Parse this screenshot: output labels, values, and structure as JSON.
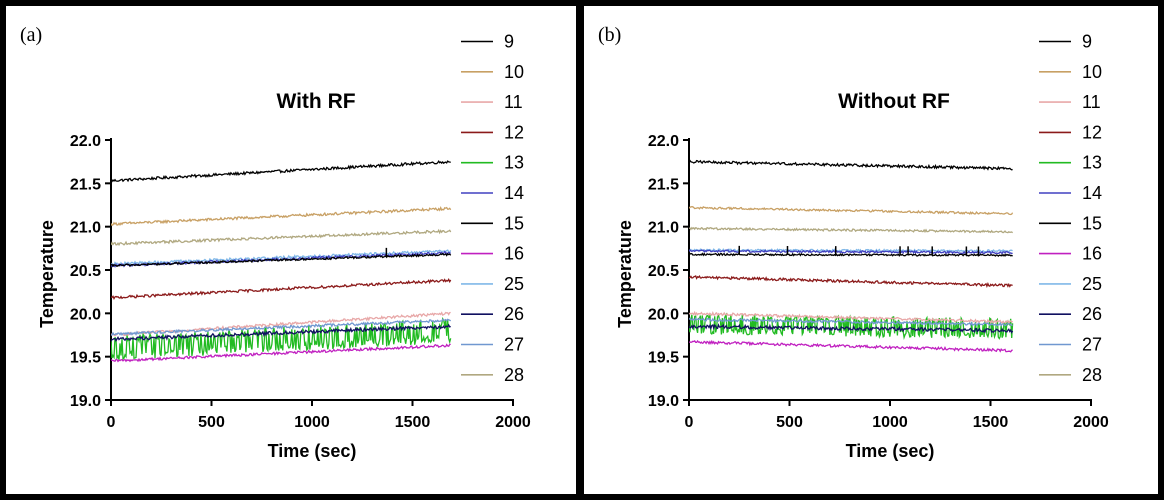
{
  "chart_data": [
    {
      "type": "line",
      "panel_label": "(a)",
      "title": "With RF",
      "xlabel": "Time (sec)",
      "ylabel": "Temperature",
      "xlim": [
        0,
        2000
      ],
      "ylim": [
        19.0,
        22.0
      ],
      "x_ticks": [
        "0",
        "500",
        "1000",
        "1500",
        "2000"
      ],
      "y_ticks": [
        "19.0",
        "19.5",
        "20.0",
        "20.5",
        "21.0",
        "21.5",
        "22.0"
      ],
      "x_tick_values": [
        0,
        500,
        1000,
        1500,
        2000
      ],
      "y_tick_values": [
        19.0,
        19.5,
        20.0,
        20.5,
        21.0,
        21.5,
        22.0
      ],
      "legend_position": "right",
      "series": [
        {
          "name": "9",
          "color": "#000000",
          "x": [
            0,
            1690
          ],
          "y": [
            21.53,
            21.75
          ],
          "noise": 0.015
        },
        {
          "name": "10",
          "color": "#c8a064",
          "x": [
            0,
            1690
          ],
          "y": [
            21.03,
            21.21
          ],
          "noise": 0.015
        },
        {
          "name": "11",
          "color": "#e8a8a8",
          "x": [
            0,
            1690
          ],
          "y": [
            19.75,
            20.0
          ],
          "noise": 0.015
        },
        {
          "name": "12",
          "color": "#8b1a1a",
          "x": [
            0,
            1690
          ],
          "y": [
            20.18,
            20.38
          ],
          "noise": 0.015
        },
        {
          "name": "13",
          "color": "#22bb22",
          "x": [
            0,
            1690
          ],
          "y": [
            19.6,
            19.8
          ],
          "noise": 0.12
        },
        {
          "name": "14",
          "color": "#4040c0",
          "x": [
            0,
            1690
          ],
          "y": [
            20.55,
            20.7
          ],
          "noise": 0.015
        },
        {
          "name": "15",
          "color": "#000000",
          "x": [
            0,
            1690
          ],
          "y": [
            20.55,
            20.68
          ],
          "noise": 0.012
        },
        {
          "name": "16",
          "color": "#c020c0",
          "x": [
            0,
            1690
          ],
          "y": [
            19.45,
            19.63
          ],
          "noise": 0.015
        },
        {
          "name": "25",
          "color": "#80b8e8",
          "x": [
            0,
            1690
          ],
          "y": [
            20.57,
            20.72
          ],
          "noise": 0.015
        },
        {
          "name": "26",
          "color": "#101060",
          "x": [
            0,
            1690
          ],
          "y": [
            19.7,
            19.85
          ],
          "noise": 0.02
        },
        {
          "name": "27",
          "color": "#7098d0",
          "x": [
            0,
            1690
          ],
          "y": [
            19.76,
            19.92
          ],
          "noise": 0.015
        },
        {
          "name": "28",
          "color": "#b0a880",
          "x": [
            0,
            1690
          ],
          "y": [
            20.8,
            20.95
          ],
          "noise": 0.015
        }
      ],
      "spikes": {
        "series": "15",
        "x": [
          1370
        ],
        "height": 0.1
      }
    },
    {
      "type": "line",
      "panel_label": "(b)",
      "title": "Without RF",
      "xlabel": "Time (sec)",
      "ylabel": "Temperature",
      "xlim": [
        0,
        2000
      ],
      "ylim": [
        19.0,
        22.0
      ],
      "x_ticks": [
        "0",
        "500",
        "1000",
        "1500",
        "2000"
      ],
      "y_ticks": [
        "19.0",
        "19.5",
        "20.0",
        "20.5",
        "21.0",
        "21.5",
        "22.0"
      ],
      "x_tick_values": [
        0,
        500,
        1000,
        1500,
        2000
      ],
      "y_tick_values": [
        19.0,
        19.5,
        20.0,
        20.5,
        21.0,
        21.5,
        22.0
      ],
      "legend_position": "right",
      "series": [
        {
          "name": "9",
          "color": "#000000",
          "x": [
            0,
            1610
          ],
          "y": [
            21.75,
            21.67
          ],
          "noise": 0.015
        },
        {
          "name": "10",
          "color": "#c8a064",
          "x": [
            0,
            1610
          ],
          "y": [
            21.22,
            21.15
          ],
          "noise": 0.012
        },
        {
          "name": "11",
          "color": "#e8a8a8",
          "x": [
            0,
            1610
          ],
          "y": [
            20.0,
            19.9
          ],
          "noise": 0.015
        },
        {
          "name": "12",
          "color": "#8b1a1a",
          "x": [
            0,
            1610
          ],
          "y": [
            20.42,
            20.32
          ],
          "noise": 0.015
        },
        {
          "name": "13",
          "color": "#22bb22",
          "x": [
            0,
            1610
          ],
          "y": [
            19.88,
            19.82
          ],
          "noise": 0.1
        },
        {
          "name": "14",
          "color": "#4040c0",
          "x": [
            0,
            1610
          ],
          "y": [
            20.72,
            20.7
          ],
          "noise": 0.012
        },
        {
          "name": "15",
          "color": "#000000",
          "x": [
            0,
            1610
          ],
          "y": [
            20.68,
            20.67
          ],
          "noise": 0.01
        },
        {
          "name": "16",
          "color": "#c020c0",
          "x": [
            0,
            1610
          ],
          "y": [
            19.67,
            19.57
          ],
          "noise": 0.015
        },
        {
          "name": "25",
          "color": "#80b8e8",
          "x": [
            0,
            1610
          ],
          "y": [
            20.73,
            20.72
          ],
          "noise": 0.012
        },
        {
          "name": "26",
          "color": "#101060",
          "x": [
            0,
            1610
          ],
          "y": [
            19.85,
            19.8
          ],
          "noise": 0.02
        },
        {
          "name": "27",
          "color": "#7098d0",
          "x": [
            0,
            1610
          ],
          "y": [
            19.93,
            19.87
          ],
          "noise": 0.015
        },
        {
          "name": "28",
          "color": "#b0a880",
          "x": [
            0,
            1610
          ],
          "y": [
            20.98,
            20.94
          ],
          "noise": 0.012
        }
      ],
      "spikes": {
        "series": "15",
        "x": [
          250,
          490,
          730,
          1050,
          1090,
          1210,
          1380,
          1440
        ],
        "height": 0.1
      }
    }
  ]
}
